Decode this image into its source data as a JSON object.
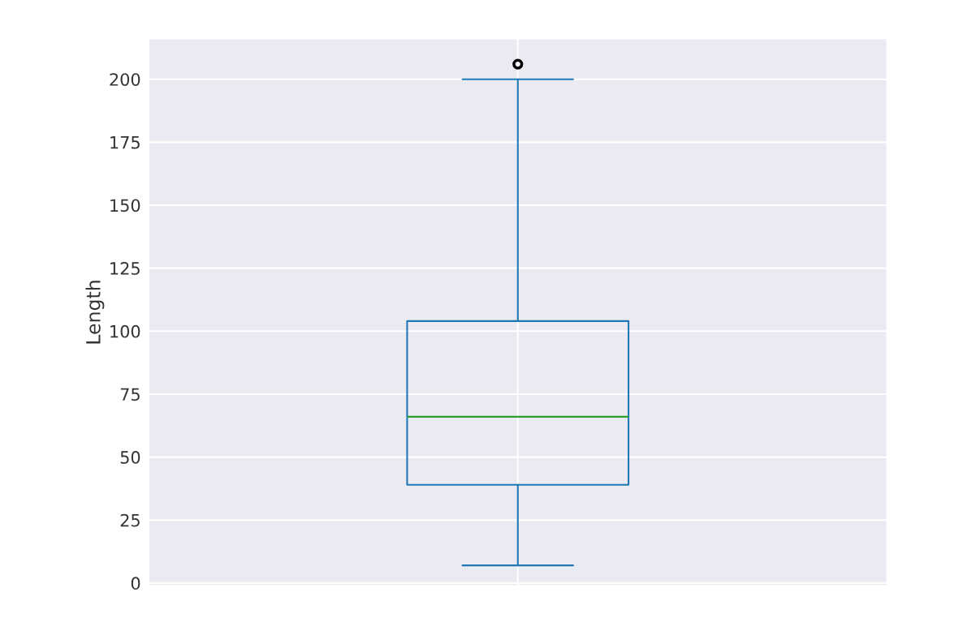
{
  "chart_data": {
    "type": "box",
    "ylabel": "Length",
    "categories": [
      null
    ],
    "boxes": [
      {
        "low": 7,
        "q1": 39,
        "median": 66,
        "q3": 104,
        "high": 200,
        "outliers": [
          206
        ]
      }
    ],
    "color": "#1f77b4",
    "ylim": [
      -1,
      216
    ],
    "yticks": [
      0,
      25,
      50,
      75,
      100,
      125,
      150,
      175,
      200
    ],
    "grid": true,
    "tick_labels": "y",
    "marker": "circle"
  }
}
